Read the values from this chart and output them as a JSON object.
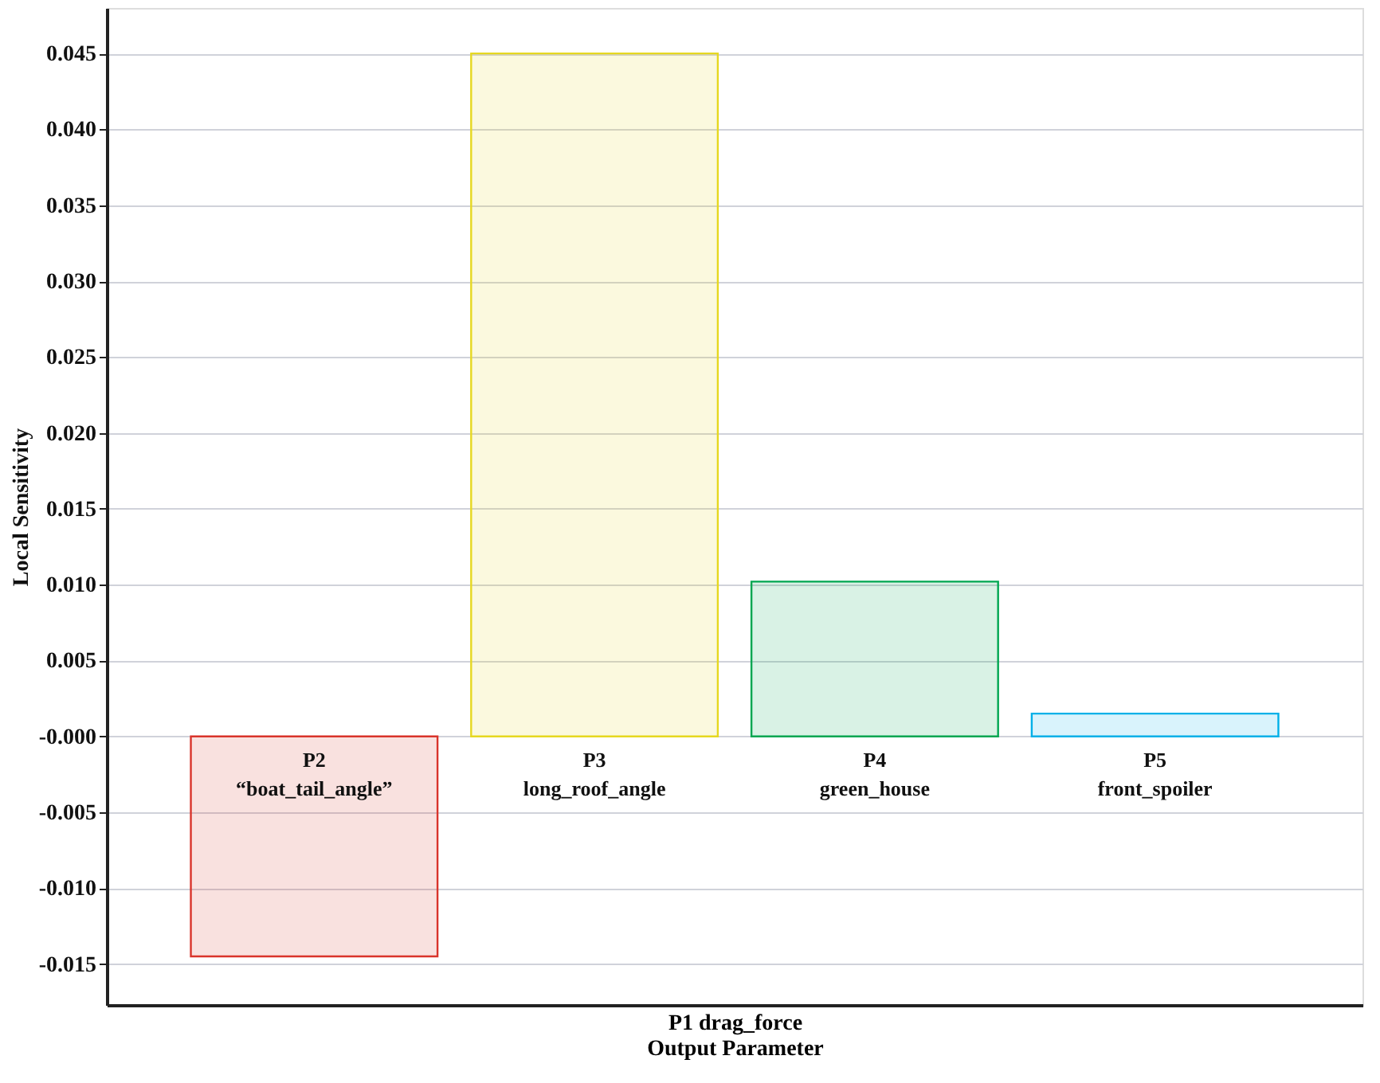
{
  "chart_data": {
    "type": "bar",
    "categories": [
      "P2\n“boat_tail_angle”",
      "P3\nlong_roof_angle",
      "P4\ngreen_house",
      "P5\nfront_spoiler"
    ],
    "values": [
      -0.0145,
      0.045,
      0.0102,
      0.0015
    ],
    "colors": [
      "#d9342b",
      "#e6d820",
      "#00a651",
      "#00b0e8"
    ],
    "xlabel": "P1 drag_force\nOutput Parameter",
    "ylabel": "Local Sensitivity",
    "ylim": [
      -0.0177,
      0.048
    ],
    "yticks": [
      {
        "value": -0.015,
        "label": "-0.015"
      },
      {
        "value": -0.01,
        "label": "-0.010"
      },
      {
        "value": -0.005,
        "label": "-0.005"
      },
      {
        "value": 0,
        "label": "-0.000"
      },
      {
        "value": 0.005,
        "label": "0.005"
      },
      {
        "value": 0.01,
        "label": "0.010"
      },
      {
        "value": 0.015,
        "label": "0.015"
      },
      {
        "value": 0.02,
        "label": "0.020"
      },
      {
        "value": 0.025,
        "label": "0.025"
      },
      {
        "value": 0.03,
        "label": "0.030"
      },
      {
        "value": 0.035,
        "label": "0.035"
      },
      {
        "value": 0.04,
        "label": "0.040"
      },
      {
        "value": 0.045,
        "label": "0.045"
      }
    ],
    "grid": "y"
  }
}
